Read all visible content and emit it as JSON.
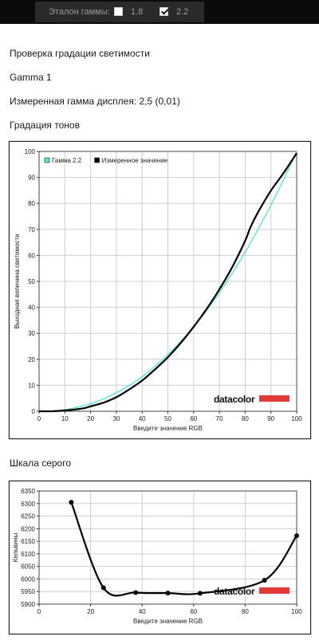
{
  "header": {
    "gamma_label": "Эталон гаммы:",
    "option_1": "1.8",
    "option_2": "2.2",
    "option_1_checked": false,
    "option_2_checked": true
  },
  "section_title": "Проверка градации светимости",
  "profile_name": "Gamma 1",
  "measured_gamma": "Измеренная гамма дисплея: 2,5 (0,01)",
  "tone_title": "Градация тонов",
  "gray_title": "Шкала серого",
  "logo_text": "datacolor",
  "chart_data": [
    {
      "type": "line",
      "xlabel": "Введите значение RGB",
      "ylabel": "Выходная величина светимости",
      "xlim": [
        0,
        100
      ],
      "ylim": [
        0,
        100
      ],
      "xticks": [
        "0",
        "10",
        "20",
        "30",
        "40",
        "50",
        "60",
        "70",
        "80",
        "90",
        "100"
      ],
      "yticks": [
        "0",
        "10",
        "20",
        "30",
        "40",
        "50",
        "60",
        "70",
        "80",
        "90",
        "100"
      ],
      "grid": true,
      "legend": "top-left",
      "series": [
        {
          "name": "Гамма 2.2",
          "color": "#5ee0e0",
          "x": [
            0,
            5,
            10,
            15,
            20,
            25,
            30,
            35,
            40,
            45,
            50,
            55,
            60,
            65,
            70,
            75,
            80,
            85,
            90,
            95,
            100
          ],
          "y": [
            0,
            0.1,
            0.6,
            1.5,
            2.9,
            4.8,
            7.1,
            9.9,
            13.3,
            17.3,
            21.8,
            26.9,
            32.5,
            38.7,
            45.6,
            53.1,
            61.2,
            70.0,
            79.3,
            89.3,
            100
          ]
        },
        {
          "name": "Измеренное значение",
          "color": "#000000",
          "x": [
            0,
            5,
            10,
            15,
            18,
            20,
            25,
            30,
            35,
            40,
            45,
            50,
            55,
            60,
            65,
            70,
            75,
            80,
            82,
            85,
            90,
            95,
            100
          ],
          "y": [
            0,
            0,
            0.3,
            0.8,
            1.3,
            1.9,
            3.3,
            5.4,
            8.4,
            11.8,
            16.1,
            20.8,
            26.3,
            32.5,
            39.3,
            46.9,
            55.5,
            65.6,
            70.7,
            76.6,
            84.9,
            91.8,
            99.3
          ]
        }
      ]
    },
    {
      "type": "line",
      "xlabel": "Введите значение RGB",
      "ylabel": "Кельвины",
      "xlim": [
        0,
        100
      ],
      "ylim": [
        5900,
        6350
      ],
      "xticks": [
        "0",
        "20",
        "40",
        "60",
        "80",
        "100"
      ],
      "yticks": [
        "5900",
        "5950",
        "6000",
        "6050",
        "6100",
        "6150",
        "6200",
        "6250",
        "6300",
        "6350"
      ],
      "grid": true,
      "series": [
        {
          "name": "",
          "color": "#000000",
          "x": [
            12.5,
            25,
            37.5,
            50,
            62.5,
            87.5,
            100
          ],
          "y": [
            6305,
            5965,
            5946,
            5944,
            5943,
            5995,
            6172
          ]
        }
      ]
    }
  ]
}
